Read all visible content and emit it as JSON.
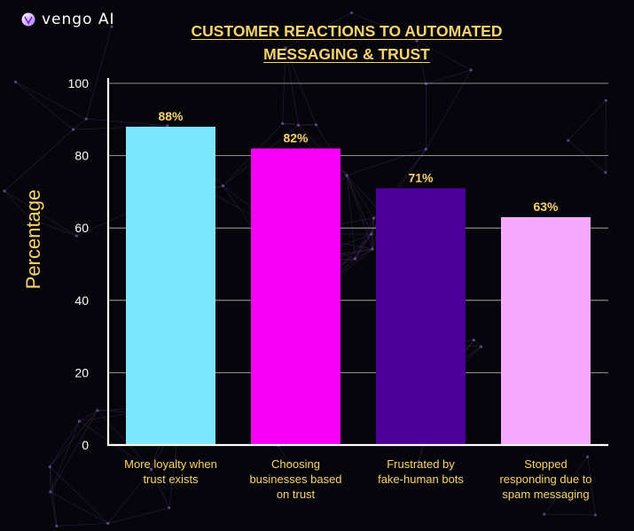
{
  "brand": {
    "name": "vengo AI",
    "icon": "vengo-logo-icon"
  },
  "colors": {
    "background": "#07050c",
    "title": "#f9d36b",
    "axis": "#ffffff",
    "grid": "#bdbdbd",
    "value_label": "#f9d36b",
    "category_label": "#f9d36b"
  },
  "chart_data": {
    "type": "bar",
    "title": "CUSTOMER REACTIONS TO AUTOMATED MESSAGING & TRUST",
    "xlabel": "",
    "ylabel": "Percentage",
    "ylim": [
      0,
      100
    ],
    "yticks": [
      0,
      20,
      40,
      60,
      80,
      100
    ],
    "grid": true,
    "categories": [
      [
        "More loyalty when",
        "trust exists"
      ],
      [
        "Choosing",
        "businesses based",
        "on trust"
      ],
      [
        "Frustrated by",
        "fake-human bots"
      ],
      [
        "Stopped",
        "responding due to",
        "spam messaging"
      ]
    ],
    "values": [
      88,
      82,
      71,
      63
    ],
    "value_labels": [
      "88%",
      "82%",
      "71%",
      "63%"
    ],
    "bar_colors": [
      "#7de6ff",
      "#f500f5",
      "#4d0099",
      "#f7a8ff"
    ]
  }
}
